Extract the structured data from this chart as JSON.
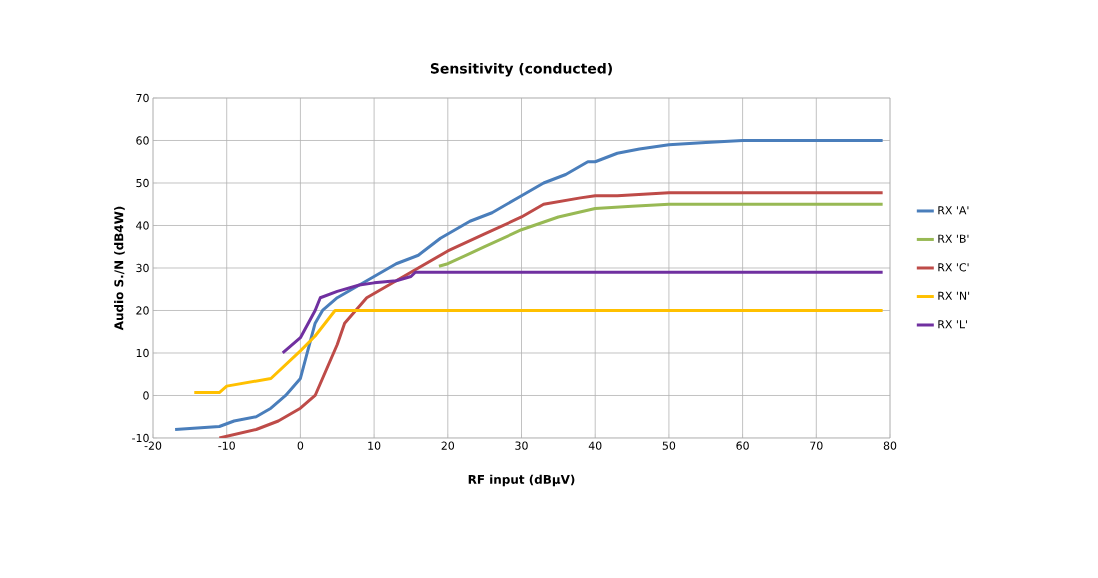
{
  "chart_data": {
    "type": "line",
    "title": "Sensitivity (conducted)",
    "xlabel": "RF input (dBµV)",
    "ylabel": "Audio S./N (dB4W)",
    "xlim": [
      -20,
      80
    ],
    "ylim": [
      -10,
      70
    ],
    "xticks": [
      -20,
      -10,
      0,
      10,
      20,
      30,
      40,
      50,
      60,
      70,
      80
    ],
    "yticks": [
      -10,
      0,
      10,
      20,
      30,
      40,
      50,
      60,
      70
    ],
    "grid": true,
    "legend": "right",
    "marker": "none",
    "line_style": "solid",
    "series": [
      {
        "name": "RX 'A'",
        "color": "#4a7ebb",
        "x": [
          -17,
          -11,
          -9,
          -6,
          -4,
          -2,
          0,
          2,
          3,
          5,
          8,
          10,
          13,
          16,
          19,
          23,
          26,
          30,
          33,
          36,
          39,
          40,
          43,
          46,
          50,
          55,
          60,
          79
        ],
        "values": [
          -8,
          -7.3,
          -6,
          -5,
          -3,
          0,
          4,
          17,
          20,
          23,
          26,
          28,
          31,
          33,
          37,
          41,
          43,
          47,
          50,
          52,
          55,
          55,
          57,
          58,
          59,
          59.5,
          60,
          60
        ]
      },
      {
        "name": "RX 'B'",
        "color": "#98b954",
        "x": [
          18.8,
          20,
          25,
          30,
          35,
          40,
          45,
          50,
          79
        ],
        "values": [
          30.4,
          31,
          35,
          39,
          42,
          44,
          44.5,
          45,
          45
        ]
      },
      {
        "name": "RX 'C'",
        "color": "#be4b48",
        "x": [
          -11,
          -6,
          -3,
          0,
          2,
          3,
          5,
          6,
          8,
          9,
          12,
          16,
          20,
          25,
          30,
          33,
          38,
          40,
          43,
          50,
          79
        ],
        "values": [
          -10,
          -8,
          -6,
          -3,
          0,
          4,
          12,
          17,
          21,
          23,
          26,
          30,
          34,
          38,
          42,
          45,
          46.5,
          47,
          47,
          47.7,
          47.7
        ]
      },
      {
        "name": "RX 'N'",
        "color": "#ffc000",
        "x": [
          -14.4,
          -11,
          -10,
          -4,
          0,
          2,
          4.7,
          79
        ],
        "values": [
          0.7,
          0.7,
          2.2,
          4,
          10.5,
          14,
          20,
          20
        ]
      },
      {
        "name": "RX 'L'",
        "color": "#7030a0",
        "x": [
          -2.4,
          0,
          2,
          2.7,
          5,
          8,
          10,
          13,
          15,
          15.6,
          79
        ],
        "values": [
          10,
          13.6,
          20,
          23,
          24.5,
          26,
          26.5,
          27,
          28,
          29,
          29
        ]
      }
    ]
  }
}
